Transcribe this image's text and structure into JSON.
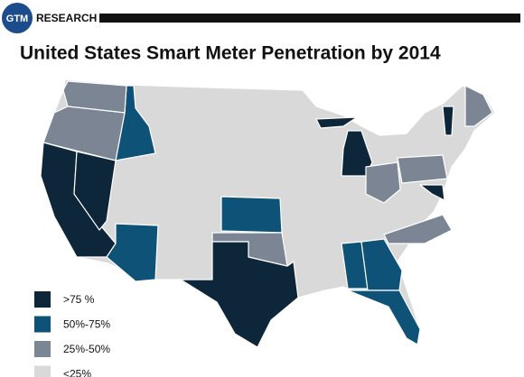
{
  "header": {
    "brand": "GTM",
    "brand_text": "RESEARCH"
  },
  "title": "United States Smart Meter Penetration by 2014",
  "legend": [
    {
      "label": ">75 %",
      "color": "#0e2639"
    },
    {
      "label": "50%-75%",
      "color": "#0f5277"
    },
    {
      "label": "25%-50%",
      "color": "#7b8593"
    },
    {
      "label": "<25%",
      "color": "#d9d9d9"
    }
  ]
}
